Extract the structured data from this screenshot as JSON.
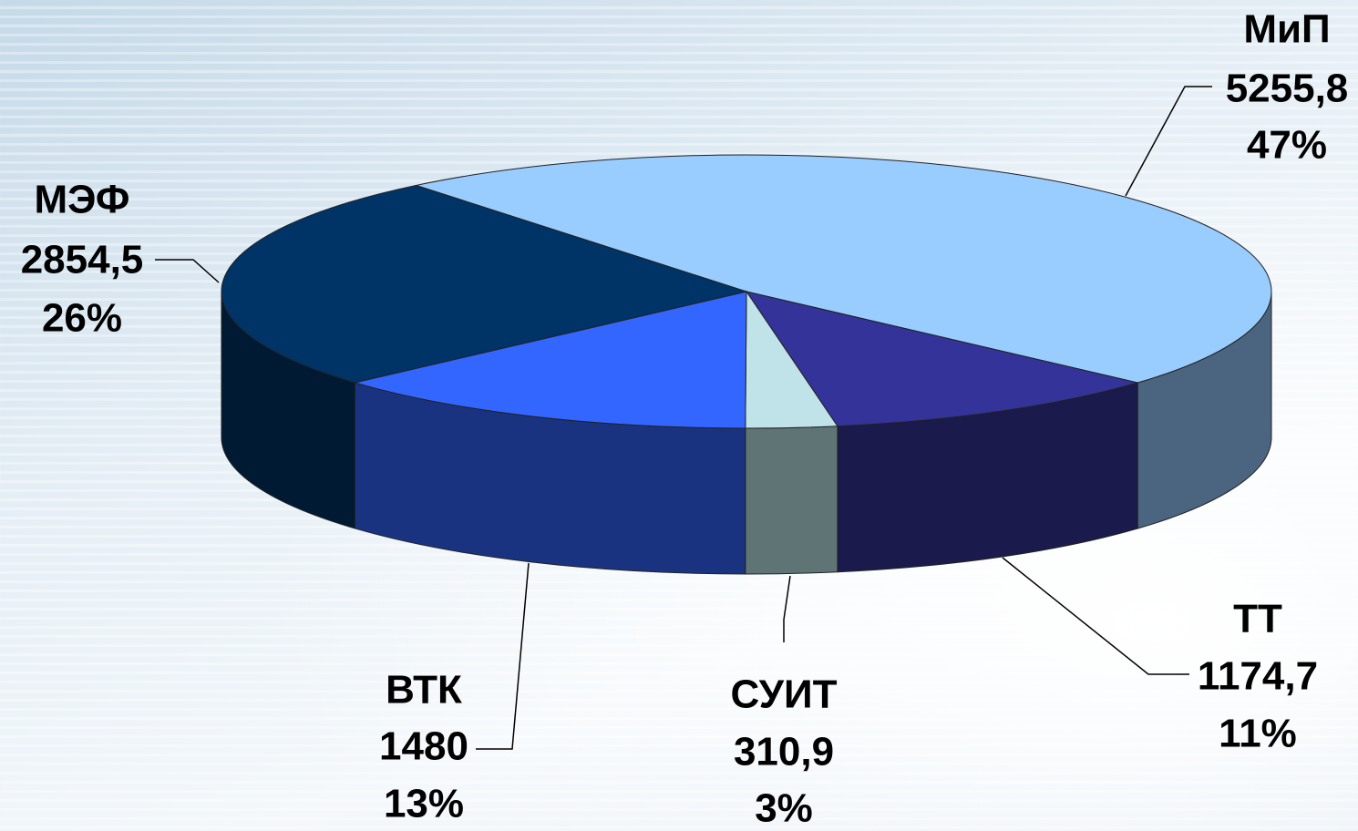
{
  "chart_data": {
    "type": "pie3d",
    "categories": [
      "МиП",
      "ТТ",
      "СУИТ",
      "ВТК",
      "МЭФ"
    ],
    "values": [
      5255.8,
      1174.7,
      310.9,
      1480,
      2854.5
    ],
    "value_labels": [
      "5255,8",
      "1174,7",
      "310,9",
      "1480",
      "2854,5"
    ],
    "percent_labels": [
      "47%",
      "11%",
      "3%",
      "13%",
      "26%"
    ],
    "colors": [
      "#99ccff",
      "#333399",
      "#bfe3e8",
      "#3366ff",
      "#003366"
    ],
    "side_colors": [
      "#4b6480",
      "#1a1a4d",
      "#5f7575",
      "#1a3380",
      "#001a33"
    ]
  }
}
